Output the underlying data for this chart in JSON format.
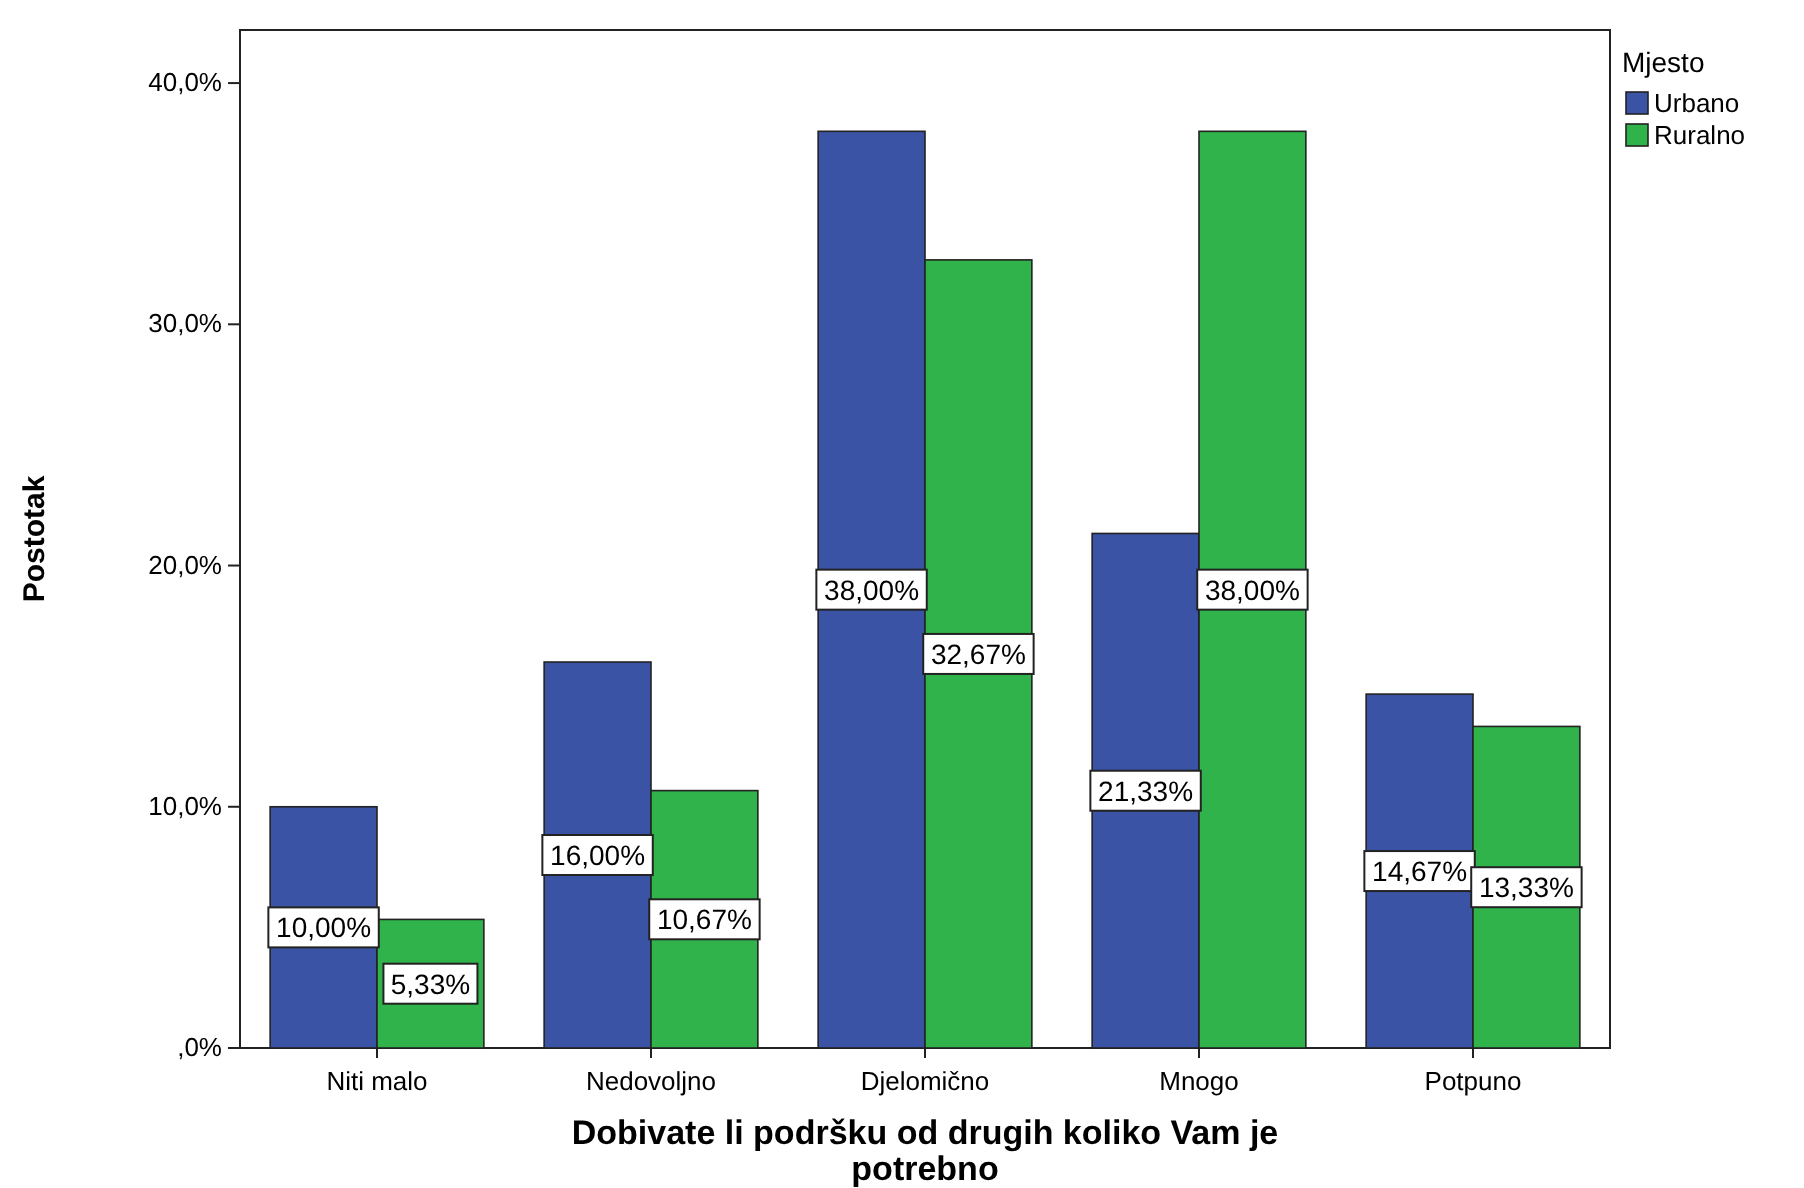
{
  "chart_data": {
    "type": "bar",
    "xlabel": "Dobivate li podršku od drugih koliko Vam je potrebno",
    "ylabel": "Postotak",
    "legend_title": "Mjesto",
    "legend": "top right",
    "categories": [
      "Niti malo",
      "Nedovoljno",
      "Djelomično",
      "Mnogo",
      "Potpuno"
    ],
    "series": [
      {
        "name": "Urbano",
        "color": "#3b53a4",
        "values": [
          10.0,
          16.0,
          38.0,
          21.33,
          14.67
        ],
        "value_labels": [
          "10,00%",
          "16,00%",
          "38,00%",
          "21,33%",
          "14,67%"
        ]
      },
      {
        "name": "Ruralno",
        "color": "#2fb34a",
        "values": [
          5.33,
          10.67,
          32.67,
          38.0,
          13.33
        ],
        "value_labels": [
          "5,33%",
          "10,67%",
          "32,67%",
          "38,00%",
          "13,33%"
        ]
      }
    ],
    "ylim": [
      0,
      42.2
    ],
    "yticks": [
      {
        "value": 0,
        "label": ",0%"
      },
      {
        "value": 10,
        "label": "10,0%"
      },
      {
        "value": 20,
        "label": "20,0%"
      },
      {
        "value": 30,
        "label": "30,0%"
      },
      {
        "value": 40,
        "label": "40,0%"
      }
    ],
    "grid": false
  }
}
